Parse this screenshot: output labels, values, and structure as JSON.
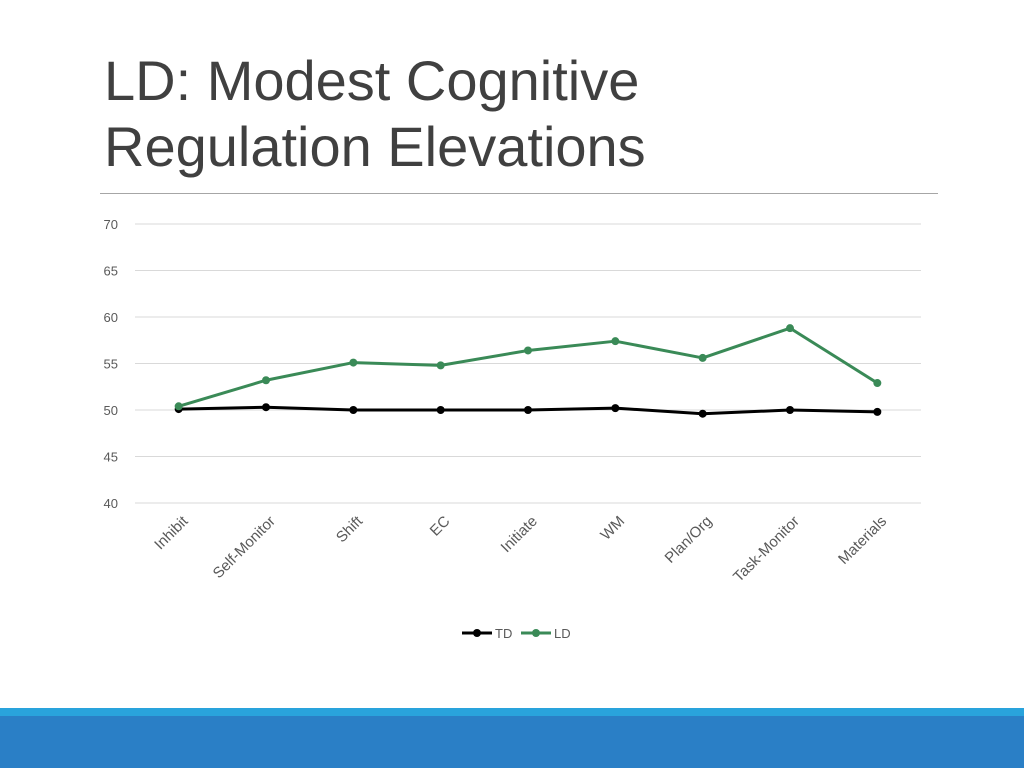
{
  "slide": {
    "title_line1": "LD: Modest Cognitive",
    "title_line2": "Regulation Elevations"
  },
  "colors": {
    "title": "#404040",
    "grid": "#d9d9d9",
    "axis_text": "#595959",
    "footer_light": "#29a3dc",
    "footer_dark": "#2a7fc6"
  },
  "chart_data": {
    "type": "line",
    "title": "",
    "xlabel": "",
    "ylabel": "",
    "categories": [
      "Inhibit",
      "Self-Monitor",
      "Shift",
      "EC",
      "Initiate",
      "WM",
      "Plan/Org",
      "Task-Monitor",
      "Materials"
    ],
    "ylim": [
      40,
      70
    ],
    "yticks": [
      40,
      45,
      50,
      55,
      60,
      65,
      70
    ],
    "grid": true,
    "legend_position": "bottom",
    "series": [
      {
        "name": "TD",
        "color": "#000000",
        "values": [
          50.1,
          50.3,
          50.0,
          50.0,
          50.0,
          50.2,
          49.6,
          50.0,
          49.8
        ]
      },
      {
        "name": "LD",
        "color": "#3a8a57",
        "values": [
          50.4,
          53.2,
          55.1,
          54.8,
          56.4,
          57.4,
          55.6,
          58.8,
          52.9
        ]
      }
    ]
  }
}
